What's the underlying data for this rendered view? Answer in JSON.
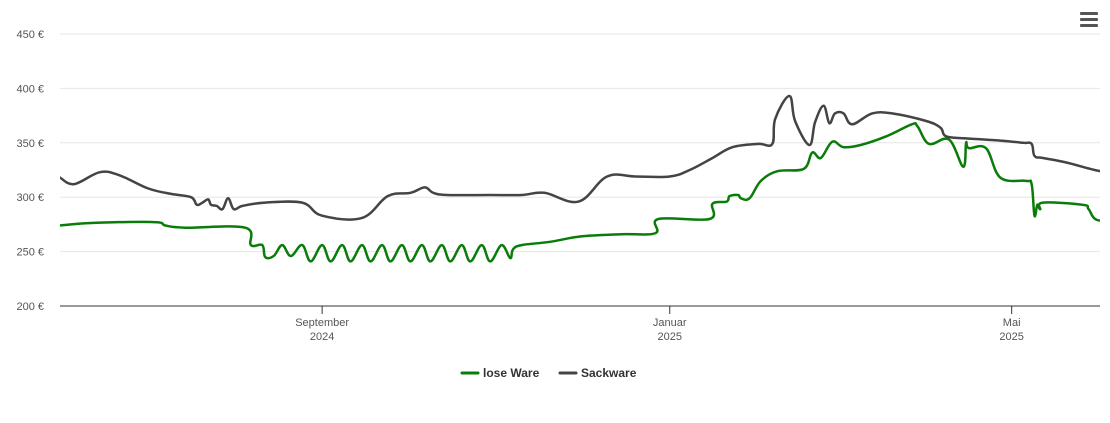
{
  "chart_data": {
    "type": "line",
    "title": "",
    "xlabel": "",
    "ylabel": "",
    "ylim": [
      200,
      450
    ],
    "y_ticks": [
      "450 €",
      "400 €",
      "350 €",
      "300 €",
      "250 €",
      "200 €"
    ],
    "y_tick_values": [
      450,
      400,
      350,
      300,
      250,
      200
    ],
    "x_ticks": [
      {
        "date": "2024-09-01",
        "month": "September",
        "year": "2024"
      },
      {
        "date": "2025-01-01",
        "month": "Januar",
        "year": "2025"
      },
      {
        "date": "2025-05-01",
        "month": "Mai",
        "year": "2025"
      }
    ],
    "x_range": [
      "2024-06-01",
      "2025-06-01"
    ],
    "grid": true,
    "legend_position": "bottom-center",
    "series": [
      {
        "name": "lose Ware",
        "color": "#0a7c0a",
        "points": [
          [
            "2024-06-01",
            274
          ],
          [
            "2024-06-10",
            276
          ],
          [
            "2024-06-20",
            277
          ],
          [
            "2024-07-05",
            277
          ],
          [
            "2024-07-08",
            274
          ],
          [
            "2024-07-15",
            272
          ],
          [
            "2024-08-05",
            272
          ],
          [
            "2024-08-07",
            256
          ],
          [
            "2024-08-11",
            256
          ],
          [
            "2024-08-12",
            245
          ],
          [
            "2024-08-15",
            246
          ],
          [
            "2024-08-18",
            256
          ],
          [
            "2024-08-21",
            246
          ],
          [
            "2024-08-25",
            256
          ],
          [
            "2024-08-28",
            241
          ],
          [
            "2024-09-01",
            256
          ],
          [
            "2024-09-04",
            241
          ],
          [
            "2024-09-08",
            256
          ],
          [
            "2024-09-11",
            241
          ],
          [
            "2024-09-15",
            256
          ],
          [
            "2024-09-18",
            241
          ],
          [
            "2024-09-22",
            256
          ],
          [
            "2024-09-25",
            241
          ],
          [
            "2024-09-29",
            256
          ],
          [
            "2024-10-02",
            241
          ],
          [
            "2024-10-06",
            256
          ],
          [
            "2024-10-09",
            241
          ],
          [
            "2024-10-13",
            256
          ],
          [
            "2024-10-16",
            241
          ],
          [
            "2024-10-20",
            256
          ],
          [
            "2024-10-23",
            241
          ],
          [
            "2024-10-27",
            256
          ],
          [
            "2024-10-30",
            241
          ],
          [
            "2024-11-03",
            256
          ],
          [
            "2024-11-06",
            244
          ],
          [
            "2024-11-07",
            252
          ],
          [
            "2024-11-10",
            256
          ],
          [
            "2024-11-20",
            259
          ],
          [
            "2024-12-01",
            264
          ],
          [
            "2024-12-15",
            266
          ],
          [
            "2024-12-27",
            267
          ],
          [
            "2024-12-28",
            280
          ],
          [
            "2025-01-15",
            280
          ],
          [
            "2025-01-16",
            294
          ],
          [
            "2025-01-21",
            296
          ],
          [
            "2025-01-22",
            301
          ],
          [
            "2025-01-25",
            302
          ],
          [
            "2025-01-26",
            299
          ],
          [
            "2025-01-29",
            299
          ],
          [
            "2025-02-02",
            315
          ],
          [
            "2025-02-08",
            324
          ],
          [
            "2025-02-17",
            326
          ],
          [
            "2025-02-20",
            341
          ],
          [
            "2025-02-23",
            336
          ],
          [
            "2025-02-27",
            351
          ],
          [
            "2025-03-03",
            346
          ],
          [
            "2025-03-09",
            348
          ],
          [
            "2025-03-18",
            356
          ],
          [
            "2025-03-27",
            367
          ],
          [
            "2025-03-29",
            365
          ],
          [
            "2025-04-02",
            349
          ],
          [
            "2025-04-09",
            353
          ],
          [
            "2025-04-14",
            328
          ],
          [
            "2025-04-15",
            350
          ],
          [
            "2025-04-16",
            345
          ],
          [
            "2025-04-22",
            345
          ],
          [
            "2025-04-27",
            318
          ],
          [
            "2025-05-06",
            315
          ],
          [
            "2025-05-08",
            312
          ],
          [
            "2025-05-09",
            283
          ],
          [
            "2025-05-10",
            293
          ],
          [
            "2025-05-11",
            289
          ],
          [
            "2025-05-12",
            295
          ],
          [
            "2025-05-26",
            293
          ],
          [
            "2025-05-28",
            289
          ],
          [
            "2025-05-31",
            279
          ],
          [
            "2025-06-08",
            279
          ]
        ]
      },
      {
        "name": "Sackware",
        "color": "#444444",
        "points": [
          [
            "2024-06-01",
            318
          ],
          [
            "2024-06-06",
            312
          ],
          [
            "2024-06-15",
            323
          ],
          [
            "2024-06-22",
            320
          ],
          [
            "2024-07-02",
            308
          ],
          [
            "2024-07-10",
            303
          ],
          [
            "2024-07-17",
            300
          ],
          [
            "2024-07-19",
            293
          ],
          [
            "2024-07-21",
            295
          ],
          [
            "2024-07-23",
            298
          ],
          [
            "2024-07-24",
            293
          ],
          [
            "2024-07-26",
            292
          ],
          [
            "2024-07-28",
            289
          ],
          [
            "2024-07-30",
            299
          ],
          [
            "2024-08-01",
            289
          ],
          [
            "2024-08-04",
            292
          ],
          [
            "2024-08-12",
            295
          ],
          [
            "2024-08-25",
            295
          ],
          [
            "2024-09-01",
            283
          ],
          [
            "2024-09-15",
            281
          ],
          [
            "2024-09-24",
            301
          ],
          [
            "2024-10-02",
            304
          ],
          [
            "2024-10-07",
            309
          ],
          [
            "2024-10-10",
            304
          ],
          [
            "2024-10-15",
            302
          ],
          [
            "2024-10-30",
            302
          ],
          [
            "2024-11-10",
            302
          ],
          [
            "2024-11-18",
            304
          ],
          [
            "2024-11-30",
            296
          ],
          [
            "2024-12-10",
            319
          ],
          [
            "2024-12-20",
            319
          ],
          [
            "2025-01-01",
            319
          ],
          [
            "2025-01-08",
            325
          ],
          [
            "2025-01-16",
            336
          ],
          [
            "2025-01-23",
            346
          ],
          [
            "2025-02-01",
            349
          ],
          [
            "2025-02-06",
            349
          ],
          [
            "2025-02-07",
            372
          ],
          [
            "2025-02-12",
            393
          ],
          [
            "2025-02-14",
            370
          ],
          [
            "2025-02-19",
            348
          ],
          [
            "2025-02-21",
            369
          ],
          [
            "2025-02-24",
            384
          ],
          [
            "2025-02-26",
            368
          ],
          [
            "2025-02-28",
            377
          ],
          [
            "2025-03-03",
            377
          ],
          [
            "2025-03-06",
            367
          ],
          [
            "2025-03-13",
            377
          ],
          [
            "2025-03-20",
            377
          ],
          [
            "2025-04-01",
            370
          ],
          [
            "2025-04-06",
            364
          ],
          [
            "2025-04-08",
            356
          ],
          [
            "2025-04-15",
            354
          ],
          [
            "2025-04-27",
            352
          ],
          [
            "2025-05-05",
            350
          ],
          [
            "2025-05-08",
            349
          ],
          [
            "2025-05-09",
            338
          ],
          [
            "2025-05-12",
            336
          ],
          [
            "2025-05-20",
            332
          ],
          [
            "2025-06-01",
            324
          ],
          [
            "2025-06-10",
            322
          ],
          [
            "2025-06-12",
            318
          ]
        ]
      }
    ]
  }
}
